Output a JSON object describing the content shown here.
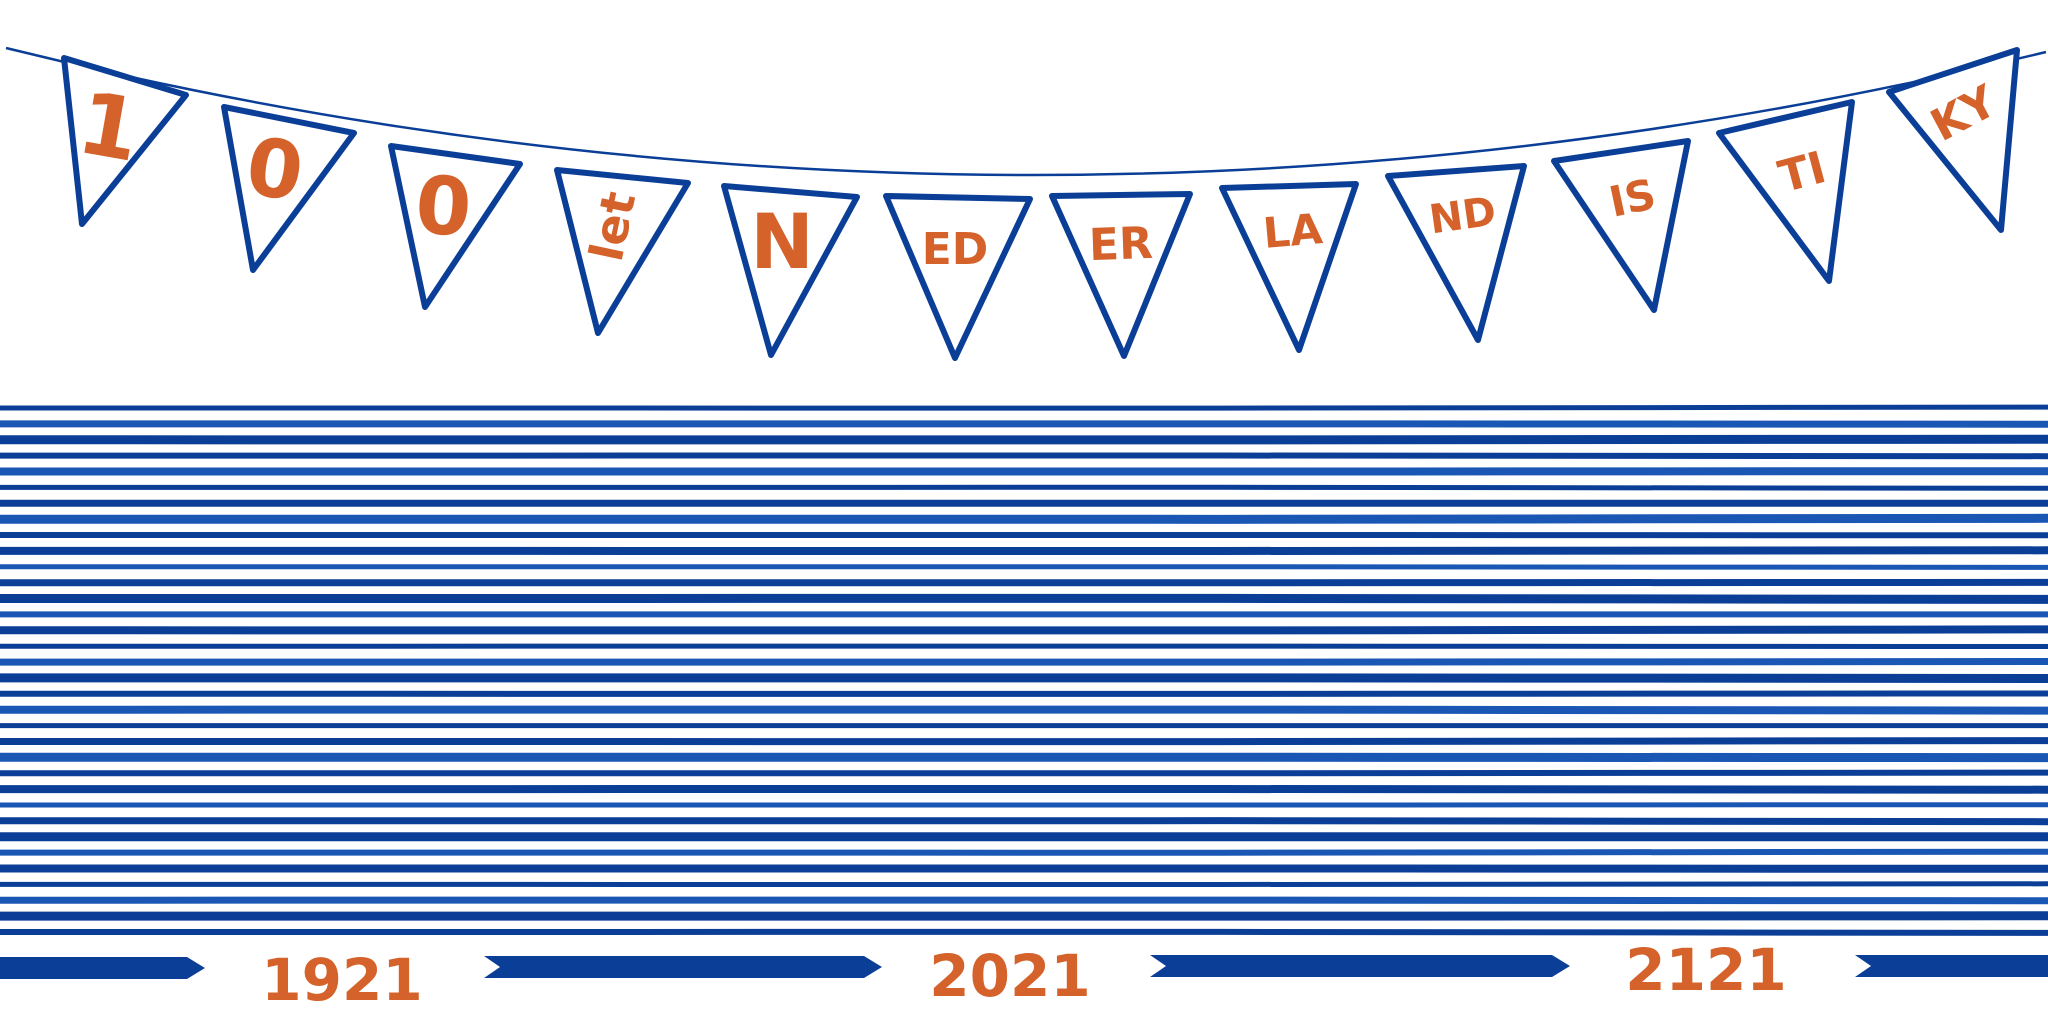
{
  "colors": {
    "blue": "#0b3f97",
    "blue_light": "#1a57b5",
    "orange": "#d4622a",
    "background": "#ffffff"
  },
  "bunting": {
    "flags": [
      {
        "label": "1"
      },
      {
        "label": "0"
      },
      {
        "label": "0"
      },
      {
        "label": "let"
      },
      {
        "label": "N"
      },
      {
        "label": "ED"
      },
      {
        "label": "ER"
      },
      {
        "label": "LA"
      },
      {
        "label": "ND"
      },
      {
        "label": "IS"
      },
      {
        "label": "TI"
      },
      {
        "label": "KY"
      }
    ]
  },
  "stripes": {
    "count": 34
  },
  "timeline": {
    "years": [
      "1921",
      "2021",
      "2121"
    ]
  }
}
